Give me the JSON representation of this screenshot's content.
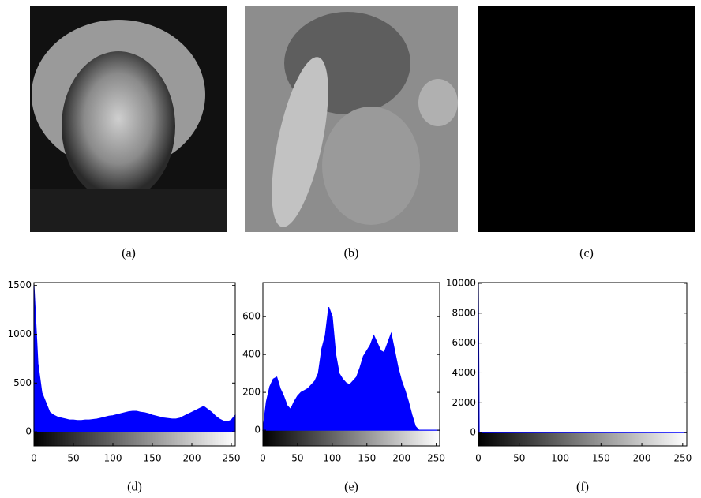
{
  "figure": {
    "captions": [
      "(a)",
      "(b)",
      "(c)"
    ]
  },
  "chart_data": [
    {
      "type": "area",
      "caption": "(d)",
      "color": "#0000ff",
      "x": [
        0,
        5,
        10,
        15,
        20,
        25,
        30,
        35,
        40,
        45,
        50,
        55,
        60,
        65,
        70,
        75,
        80,
        85,
        90,
        95,
        100,
        105,
        110,
        115,
        120,
        125,
        130,
        135,
        140,
        145,
        150,
        155,
        160,
        165,
        170,
        175,
        180,
        185,
        190,
        195,
        200,
        205,
        210,
        215,
        220,
        225,
        230,
        235,
        240,
        245,
        250,
        255
      ],
      "values": [
        1500,
        700,
        400,
        300,
        200,
        170,
        150,
        140,
        130,
        120,
        120,
        115,
        115,
        120,
        120,
        125,
        130,
        140,
        150,
        160,
        165,
        175,
        185,
        195,
        205,
        210,
        210,
        200,
        195,
        185,
        170,
        160,
        150,
        140,
        135,
        130,
        130,
        140,
        160,
        180,
        200,
        220,
        240,
        260,
        230,
        200,
        160,
        130,
        110,
        100,
        120,
        170
      ],
      "xlim": [
        0,
        255
      ],
      "ylim": [
        -145,
        1530
      ],
      "xticks": [
        0,
        50,
        100,
        150,
        200,
        250
      ],
      "yticks": [
        0,
        500,
        1000,
        1500
      ]
    },
    {
      "type": "area",
      "caption": "(e)",
      "color": "#0000ff",
      "x": [
        0,
        5,
        10,
        15,
        20,
        25,
        30,
        35,
        40,
        45,
        50,
        55,
        60,
        65,
        70,
        75,
        80,
        85,
        90,
        95,
        100,
        105,
        110,
        115,
        120,
        125,
        130,
        135,
        140,
        145,
        150,
        155,
        160,
        165,
        170,
        175,
        180,
        185,
        190,
        195,
        200,
        205,
        210,
        215,
        220,
        225,
        230,
        235,
        240,
        245,
        250,
        255
      ],
      "values": [
        0,
        150,
        230,
        270,
        280,
        220,
        180,
        130,
        110,
        150,
        180,
        200,
        210,
        220,
        240,
        260,
        300,
        430,
        500,
        650,
        600,
        400,
        300,
        270,
        250,
        240,
        260,
        280,
        330,
        390,
        420,
        450,
        500,
        460,
        420,
        410,
        460,
        510,
        420,
        330,
        260,
        210,
        150,
        80,
        20,
        0,
        0,
        0,
        0,
        0,
        0,
        0
      ],
      "xlim": [
        0,
        255
      ],
      "ylim": [
        -83,
        780
      ],
      "xticks": [
        0,
        50,
        100,
        150,
        200,
        250
      ],
      "yticks": [
        0,
        200,
        400,
        600
      ]
    },
    {
      "type": "area",
      "caption": "(f)",
      "color": "#0000ff",
      "x": [
        0,
        1,
        255
      ],
      "values": [
        10000,
        0,
        0
      ],
      "xlim": [
        0,
        255
      ],
      "ylim": [
        -890,
        10050
      ],
      "xticks": [
        0,
        50,
        100,
        150,
        200,
        250
      ],
      "yticks": [
        0,
        2000,
        4000,
        6000,
        8000,
        10000
      ]
    }
  ]
}
